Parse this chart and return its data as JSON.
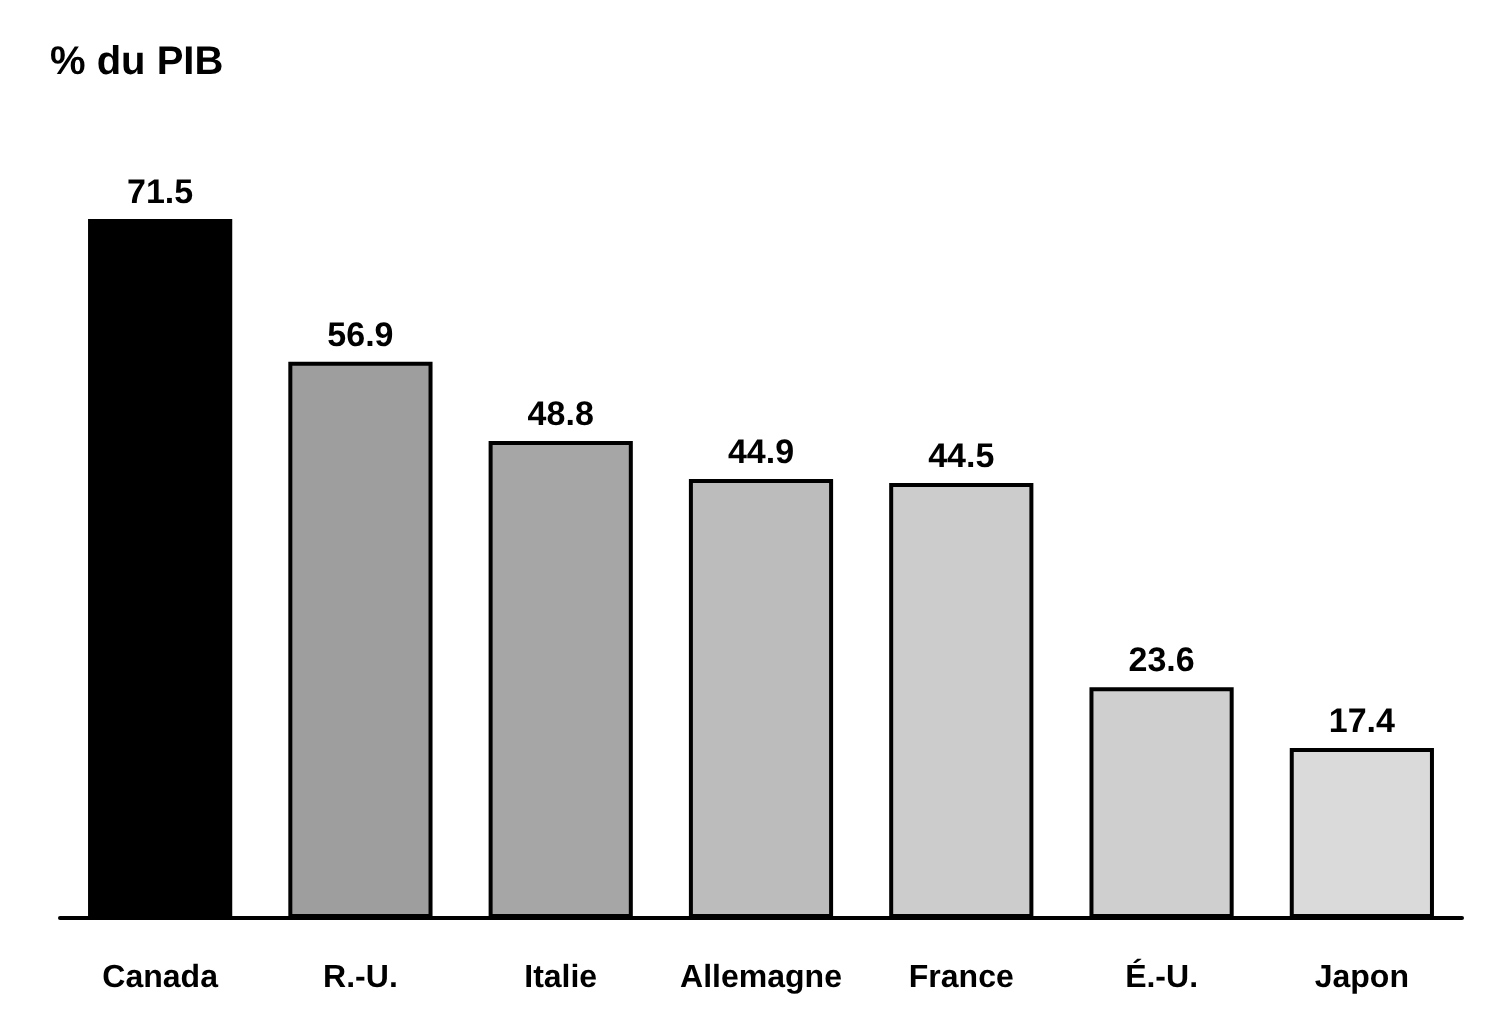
{
  "chart_data": {
    "type": "bar",
    "title": "% du PIB",
    "categories": [
      "Canada",
      "R.-U.",
      "Italie",
      "Allemagne",
      "France",
      "É.-U.",
      "Japon"
    ],
    "values": [
      71.5,
      56.9,
      48.8,
      44.9,
      44.5,
      23.6,
      17.4
    ],
    "colors": [
      "#000000",
      "#9e9e9e",
      "#a6a6a6",
      "#bcbcbc",
      "#cccccc",
      "#cfcfcf",
      "#dadada"
    ],
    "data_labels": true,
    "tick_labels": "x"
  }
}
